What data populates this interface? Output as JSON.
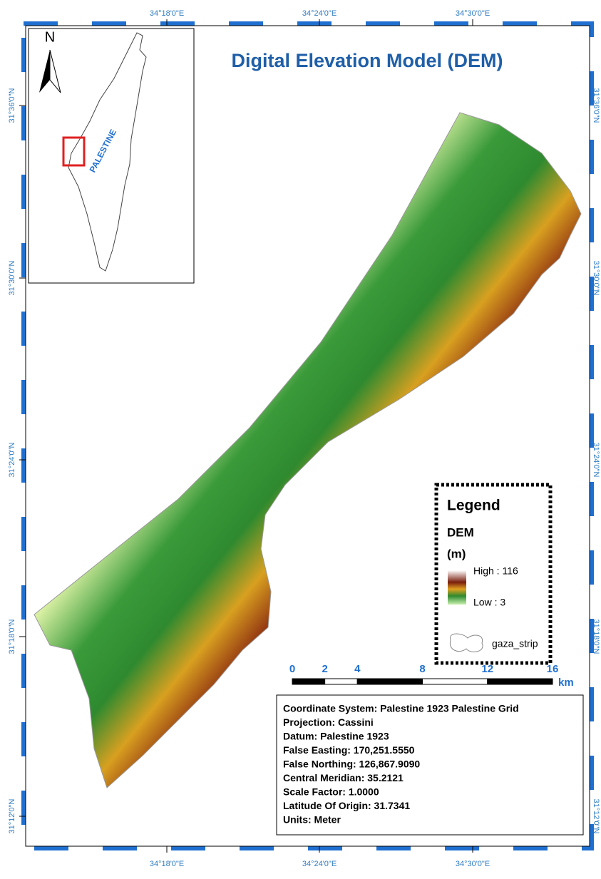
{
  "title": "Digital Elevation Model (DEM)",
  "inset": {
    "north": "N",
    "label": "PALESTINE"
  },
  "graticule": {
    "longitudes": [
      "34°18'0\"E",
      "34°24'0\"E",
      "34°30'0\"E"
    ],
    "latitudes": [
      "31°36'0\"N",
      "31°30'0\"N",
      "31°24'0\"N",
      "31°18'0\"N",
      "31°12'0\"N"
    ]
  },
  "legend": {
    "title": "Legend",
    "layer": "DEM",
    "unit": "(m)",
    "high": "High : 116",
    "low": "Low : 3",
    "boundary": "gaza_strip"
  },
  "scale_bar": {
    "ticks": [
      0,
      2,
      4,
      8,
      12,
      16
    ],
    "unit": "km"
  },
  "info": [
    "Coordinate System: Palestine 1923 Palestine Grid",
    "Projection: Cassini",
    "Datum: Palestine 1923",
    "False Easting: 170,251.5550",
    "False Northing: 126,867.9090",
    "Central Meridian: 35.2121",
    "Scale Factor: 1.0000",
    "Latitude Of Origin: 31.7341",
    "Units: Meter"
  ]
}
